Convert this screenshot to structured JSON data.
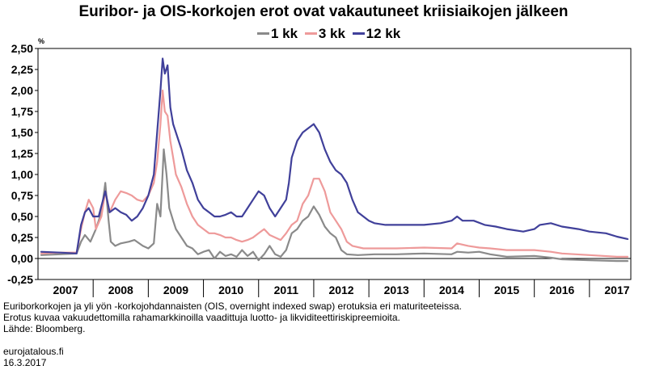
{
  "title": "Euribor- ja OIS-korkojen erot ovat vakautuneet kriisiaikojen jälkeen",
  "colors": {
    "m1": "#8a8a8a",
    "m3": "#ee9a9a",
    "m12": "#40409a"
  },
  "chart_data": {
    "type": "line",
    "title": "Euribor- ja OIS-korkojen erot ovat vakautuneet kriisiaikojen jälkeen",
    "ylabel": "%",
    "ylim": [
      -0.25,
      2.5
    ],
    "yticks": [
      -0.25,
      0.0,
      0.25,
      0.5,
      0.75,
      1.0,
      1.25,
      1.5,
      1.75,
      2.0,
      2.25,
      2.5
    ],
    "ytick_labels": [
      "-0,25",
      "0,00",
      "0,25",
      "0,50",
      "0,75",
      "1,00",
      "1,25",
      "1,50",
      "1,75",
      "2,00",
      "2,25",
      "2,50"
    ],
    "xlim": [
      2006.5,
      2017.25
    ],
    "xtick_labels": [
      "2007",
      "2008",
      "2009",
      "2010",
      "2011",
      "2012",
      "2013",
      "2014",
      "2015",
      "2016",
      "2017"
    ],
    "legend": "top",
    "grid": false,
    "series": [
      {
        "name": "1 kk",
        "color": "#8a8a8a",
        "points": [
          [
            2006.55,
            0.04
          ],
          [
            2006.9,
            0.05
          ],
          [
            2007.2,
            0.06
          ],
          [
            2007.28,
            0.2
          ],
          [
            2007.35,
            0.28
          ],
          [
            2007.45,
            0.2
          ],
          [
            2007.55,
            0.35
          ],
          [
            2007.65,
            0.55
          ],
          [
            2007.72,
            0.9
          ],
          [
            2007.78,
            0.45
          ],
          [
            2007.82,
            0.2
          ],
          [
            2007.9,
            0.15
          ],
          [
            2008.0,
            0.18
          ],
          [
            2008.15,
            0.2
          ],
          [
            2008.25,
            0.22
          ],
          [
            2008.4,
            0.15
          ],
          [
            2008.5,
            0.12
          ],
          [
            2008.6,
            0.18
          ],
          [
            2008.66,
            0.65
          ],
          [
            2008.72,
            0.5
          ],
          [
            2008.78,
            1.3
          ],
          [
            2008.83,
            1.0
          ],
          [
            2008.88,
            0.6
          ],
          [
            2008.95,
            0.45
          ],
          [
            2009.0,
            0.35
          ],
          [
            2009.1,
            0.25
          ],
          [
            2009.2,
            0.15
          ],
          [
            2009.3,
            0.12
          ],
          [
            2009.4,
            0.05
          ],
          [
            2009.5,
            0.08
          ],
          [
            2009.6,
            0.1
          ],
          [
            2009.7,
            0.0
          ],
          [
            2009.8,
            0.08
          ],
          [
            2009.9,
            0.03
          ],
          [
            2010.0,
            0.05
          ],
          [
            2010.1,
            0.02
          ],
          [
            2010.2,
            0.1
          ],
          [
            2010.3,
            0.03
          ],
          [
            2010.4,
            0.08
          ],
          [
            2010.5,
            -0.02
          ],
          [
            2010.6,
            0.05
          ],
          [
            2010.7,
            0.15
          ],
          [
            2010.8,
            0.05
          ],
          [
            2010.9,
            0.02
          ],
          [
            2011.0,
            0.1
          ],
          [
            2011.05,
            0.2
          ],
          [
            2011.1,
            0.3
          ],
          [
            2011.2,
            0.35
          ],
          [
            2011.3,
            0.45
          ],
          [
            2011.4,
            0.5
          ],
          [
            2011.5,
            0.62
          ],
          [
            2011.6,
            0.52
          ],
          [
            2011.7,
            0.38
          ],
          [
            2011.8,
            0.3
          ],
          [
            2011.9,
            0.25
          ],
          [
            2012.0,
            0.1
          ],
          [
            2012.1,
            0.05
          ],
          [
            2012.3,
            0.04
          ],
          [
            2012.6,
            0.05
          ],
          [
            2013.0,
            0.05
          ],
          [
            2013.5,
            0.06
          ],
          [
            2014.0,
            0.05
          ],
          [
            2014.1,
            0.08
          ],
          [
            2014.3,
            0.07
          ],
          [
            2014.5,
            0.08
          ],
          [
            2014.7,
            0.05
          ],
          [
            2015.0,
            0.02
          ],
          [
            2015.5,
            0.03
          ],
          [
            2015.8,
            0.01
          ],
          [
            2016.0,
            -0.01
          ],
          [
            2016.5,
            -0.02
          ],
          [
            2017.0,
            -0.03
          ],
          [
            2017.2,
            -0.03
          ]
        ]
      },
      {
        "name": "3 kk",
        "color": "#ee9a9a",
        "points": [
          [
            2006.55,
            0.06
          ],
          [
            2006.9,
            0.07
          ],
          [
            2007.2,
            0.07
          ],
          [
            2007.28,
            0.35
          ],
          [
            2007.35,
            0.55
          ],
          [
            2007.42,
            0.7
          ],
          [
            2007.5,
            0.6
          ],
          [
            2007.55,
            0.35
          ],
          [
            2007.65,
            0.5
          ],
          [
            2007.72,
            0.8
          ],
          [
            2007.8,
            0.55
          ],
          [
            2007.9,
            0.7
          ],
          [
            2008.0,
            0.8
          ],
          [
            2008.1,
            0.78
          ],
          [
            2008.2,
            0.75
          ],
          [
            2008.3,
            0.7
          ],
          [
            2008.4,
            0.68
          ],
          [
            2008.5,
            0.75
          ],
          [
            2008.6,
            0.9
          ],
          [
            2008.66,
            1.15
          ],
          [
            2008.72,
            1.6
          ],
          [
            2008.76,
            2.0
          ],
          [
            2008.8,
            1.75
          ],
          [
            2008.85,
            1.7
          ],
          [
            2008.9,
            1.4
          ],
          [
            2008.95,
            1.2
          ],
          [
            2009.0,
            1.0
          ],
          [
            2009.1,
            0.85
          ],
          [
            2009.2,
            0.65
          ],
          [
            2009.3,
            0.5
          ],
          [
            2009.4,
            0.4
          ],
          [
            2009.5,
            0.35
          ],
          [
            2009.6,
            0.3
          ],
          [
            2009.7,
            0.3
          ],
          [
            2009.8,
            0.28
          ],
          [
            2009.9,
            0.25
          ],
          [
            2010.0,
            0.25
          ],
          [
            2010.1,
            0.22
          ],
          [
            2010.2,
            0.2
          ],
          [
            2010.3,
            0.22
          ],
          [
            2010.4,
            0.25
          ],
          [
            2010.5,
            0.3
          ],
          [
            2010.6,
            0.35
          ],
          [
            2010.7,
            0.28
          ],
          [
            2010.8,
            0.25
          ],
          [
            2010.9,
            0.22
          ],
          [
            2011.0,
            0.3
          ],
          [
            2011.1,
            0.4
          ],
          [
            2011.2,
            0.45
          ],
          [
            2011.3,
            0.65
          ],
          [
            2011.4,
            0.75
          ],
          [
            2011.5,
            0.95
          ],
          [
            2011.6,
            0.95
          ],
          [
            2011.7,
            0.8
          ],
          [
            2011.8,
            0.55
          ],
          [
            2011.9,
            0.45
          ],
          [
            2012.0,
            0.35
          ],
          [
            2012.1,
            0.2
          ],
          [
            2012.2,
            0.15
          ],
          [
            2012.4,
            0.12
          ],
          [
            2012.6,
            0.12
          ],
          [
            2013.0,
            0.12
          ],
          [
            2013.5,
            0.13
          ],
          [
            2014.0,
            0.12
          ],
          [
            2014.1,
            0.18
          ],
          [
            2014.3,
            0.15
          ],
          [
            2014.5,
            0.13
          ],
          [
            2014.7,
            0.12
          ],
          [
            2015.0,
            0.1
          ],
          [
            2015.5,
            0.1
          ],
          [
            2015.8,
            0.08
          ],
          [
            2016.0,
            0.06
          ],
          [
            2016.5,
            0.04
          ],
          [
            2017.0,
            0.02
          ],
          [
            2017.2,
            0.02
          ]
        ]
      },
      {
        "name": "12 kk",
        "color": "#40409a",
        "points": [
          [
            2006.55,
            0.08
          ],
          [
            2006.9,
            0.07
          ],
          [
            2007.2,
            0.06
          ],
          [
            2007.28,
            0.4
          ],
          [
            2007.35,
            0.55
          ],
          [
            2007.42,
            0.6
          ],
          [
            2007.5,
            0.5
          ],
          [
            2007.6,
            0.5
          ],
          [
            2007.72,
            0.8
          ],
          [
            2007.8,
            0.55
          ],
          [
            2007.9,
            0.6
          ],
          [
            2008.0,
            0.55
          ],
          [
            2008.1,
            0.52
          ],
          [
            2008.2,
            0.45
          ],
          [
            2008.3,
            0.5
          ],
          [
            2008.4,
            0.6
          ],
          [
            2008.5,
            0.75
          ],
          [
            2008.6,
            1.0
          ],
          [
            2008.66,
            1.5
          ],
          [
            2008.72,
            2.0
          ],
          [
            2008.76,
            2.38
          ],
          [
            2008.8,
            2.2
          ],
          [
            2008.85,
            2.3
          ],
          [
            2008.9,
            1.8
          ],
          [
            2008.95,
            1.6
          ],
          [
            2009.0,
            1.5
          ],
          [
            2009.1,
            1.3
          ],
          [
            2009.2,
            1.05
          ],
          [
            2009.3,
            0.9
          ],
          [
            2009.4,
            0.7
          ],
          [
            2009.5,
            0.6
          ],
          [
            2009.6,
            0.55
          ],
          [
            2009.7,
            0.5
          ],
          [
            2009.8,
            0.5
          ],
          [
            2009.9,
            0.52
          ],
          [
            2010.0,
            0.55
          ],
          [
            2010.1,
            0.5
          ],
          [
            2010.2,
            0.5
          ],
          [
            2010.3,
            0.6
          ],
          [
            2010.4,
            0.7
          ],
          [
            2010.5,
            0.8
          ],
          [
            2010.6,
            0.75
          ],
          [
            2010.7,
            0.6
          ],
          [
            2010.8,
            0.5
          ],
          [
            2010.9,
            0.6
          ],
          [
            2011.0,
            0.7
          ],
          [
            2011.05,
            0.9
          ],
          [
            2011.1,
            1.2
          ],
          [
            2011.2,
            1.4
          ],
          [
            2011.3,
            1.5
          ],
          [
            2011.4,
            1.55
          ],
          [
            2011.5,
            1.6
          ],
          [
            2011.6,
            1.5
          ],
          [
            2011.7,
            1.3
          ],
          [
            2011.8,
            1.15
          ],
          [
            2011.9,
            1.05
          ],
          [
            2012.0,
            1.0
          ],
          [
            2012.1,
            0.9
          ],
          [
            2012.2,
            0.7
          ],
          [
            2012.3,
            0.55
          ],
          [
            2012.4,
            0.5
          ],
          [
            2012.5,
            0.45
          ],
          [
            2012.6,
            0.42
          ],
          [
            2012.8,
            0.4
          ],
          [
            2013.0,
            0.4
          ],
          [
            2013.5,
            0.4
          ],
          [
            2013.8,
            0.42
          ],
          [
            2014.0,
            0.45
          ],
          [
            2014.1,
            0.5
          ],
          [
            2014.2,
            0.45
          ],
          [
            2014.4,
            0.45
          ],
          [
            2014.6,
            0.4
          ],
          [
            2014.8,
            0.38
          ],
          [
            2015.0,
            0.35
          ],
          [
            2015.3,
            0.32
          ],
          [
            2015.5,
            0.35
          ],
          [
            2015.6,
            0.4
          ],
          [
            2015.8,
            0.42
          ],
          [
            2016.0,
            0.38
          ],
          [
            2016.3,
            0.35
          ],
          [
            2016.5,
            0.32
          ],
          [
            2016.8,
            0.3
          ],
          [
            2017.0,
            0.26
          ],
          [
            2017.2,
            0.23
          ]
        ]
      }
    ]
  },
  "notes": [
    "Euriborkorkojen ja yli yön -korkojohdannaisten (OIS, overnight indexed swap) erotuksia eri maturiteeteissa.",
    "Erotus kuvaa vakuudettomilla rahamarkkinoilla vaadittuja luotto- ja likviditeettiriskipreemioita.",
    "Lähde: Bloomberg."
  ],
  "footer": {
    "site": "eurojatalous.fi",
    "date": "16.3.2017"
  }
}
